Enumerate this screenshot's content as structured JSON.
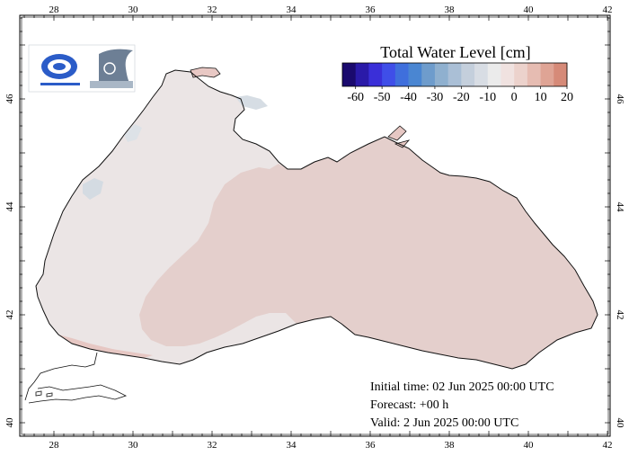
{
  "map": {
    "lon_ticks": [
      "28",
      "30",
      "32",
      "34",
      "36",
      "38",
      "40",
      "42"
    ],
    "lat_ticks": [
      "40",
      "42",
      "44",
      "46"
    ]
  },
  "colorbar": {
    "title": "Total Water Level [cm]",
    "labels": [
      "-60",
      "-50",
      "-40",
      "-30",
      "-20",
      "-10",
      "0",
      "10",
      "20"
    ],
    "colors": [
      "#1a0a6e",
      "#2a1aa8",
      "#3a2fd8",
      "#3f4ee8",
      "#3f6fdc",
      "#4a86d2",
      "#6e9ccc",
      "#8fb0cf",
      "#aabfd6",
      "#c4cfdc",
      "#d8dde4",
      "#ebebeb",
      "#f0e2e0",
      "#ecd2cc",
      "#e6bcb2",
      "#dfa495",
      "#d68a78"
    ]
  },
  "info": {
    "initial": "Initial time: 02 Jun 2025 00:00 UTC",
    "forecast": "Forecast: +00 h",
    "valid": "Valid:  2 Jun 2025 00:00 UTC"
  },
  "colors": {
    "sea_west": "#ebe5e5",
    "sea_east": "#e4cfcc",
    "coast": "#111111"
  },
  "icons": [
    "agency-logo-icon",
    "modeling-logo-icon"
  ]
}
